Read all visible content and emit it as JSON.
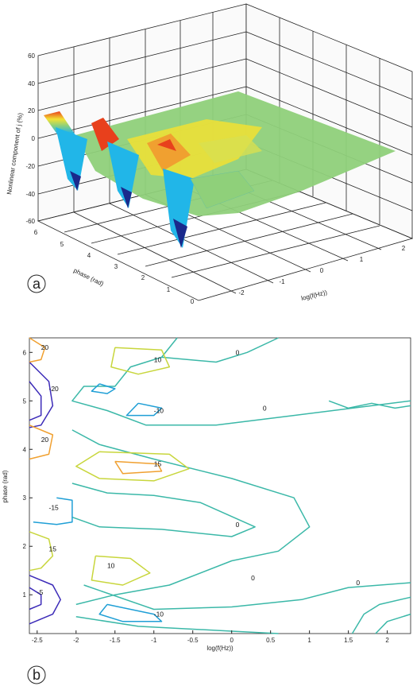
{
  "panel_a_label": "a",
  "panel_b_label": "b",
  "colors": {
    "surface_low": "#1a2a8c",
    "surface_mid_low": "#21b6e8",
    "surface_mid": "#f2e233",
    "surface_high": "#e8401c",
    "surface_flat": "#8fd07a",
    "contour_neg_strong": "#3c2bb8",
    "contour_neg": "#1f9fd6",
    "contour_zero": "#3bb8a8",
    "contour_pos": "#c8d63c",
    "contour_pos_strong": "#f0a030"
  },
  "chart_data": [
    {
      "type": "surface3d",
      "zlabel": "Nonlinear component of j (%)",
      "ylabel": "phase (rad)",
      "xlabel": "log(f(Hz))",
      "zlim": [
        -60,
        60
      ],
      "zticks": [
        "-60",
        "-40",
        "-20",
        "0",
        "20",
        "40",
        "60"
      ],
      "yticks": [
        "0",
        "1",
        "2",
        "3",
        "4",
        "5",
        "6"
      ],
      "xticks": [
        "-2",
        "-1",
        "0",
        "1",
        "2"
      ],
      "peaks": [
        {
          "x": -2.6,
          "phase": 5.2,
          "z": 20
        },
        {
          "x": -2.4,
          "phase": 4.6,
          "z": -45
        },
        {
          "x": -2.0,
          "phase": 4.0,
          "z": 25
        },
        {
          "x": -1.6,
          "phase": 2.8,
          "z": -35
        },
        {
          "x": -1.2,
          "phase": 1.2,
          "z": 15
        },
        {
          "x": -1.0,
          "phase": 0.8,
          "z": -55
        }
      ]
    },
    {
      "type": "contour",
      "xlabel": "log(f(Hz))",
      "ylabel": "phase (rad)",
      "xlim": [
        -2.6,
        2.3
      ],
      "ylim": [
        0.2,
        6.3
      ],
      "xticks": [
        "-2.5",
        "-2",
        "-1.5",
        "-1",
        "-0.5",
        "0",
        "0.5",
        "1",
        "1.5",
        "2"
      ],
      "yticks": [
        "1",
        "2",
        "3",
        "4",
        "5",
        "6"
      ],
      "contour_labels": [
        {
          "text": "20",
          "x": -2.45,
          "y": 6.05
        },
        {
          "text": "-20",
          "x": -2.35,
          "y": 5.2
        },
        {
          "text": "20",
          "x": -2.45,
          "y": 4.15
        },
        {
          "text": "-15",
          "x": -2.35,
          "y": 2.75
        },
        {
          "text": "15",
          "x": -2.35,
          "y": 1.9
        },
        {
          "text": "-5",
          "x": -2.5,
          "y": 1.0
        },
        {
          "text": "10",
          "x": -1.0,
          "y": 5.8
        },
        {
          "text": "-10",
          "x": -1.0,
          "y": 4.75
        },
        {
          "text": "15",
          "x": -1.0,
          "y": 3.65
        },
        {
          "text": "10",
          "x": -1.6,
          "y": 1.55
        },
        {
          "text": "-10",
          "x": -1.0,
          "y": 0.55
        },
        {
          "text": "0",
          "x": 0.05,
          "y": 5.95
        },
        {
          "text": "0",
          "x": 0.4,
          "y": 4.8
        },
        {
          "text": "0",
          "x": 0.05,
          "y": 2.4
        },
        {
          "text": "0",
          "x": 0.25,
          "y": 1.3
        },
        {
          "text": "0",
          "x": 1.6,
          "y": 1.2
        }
      ]
    }
  ]
}
